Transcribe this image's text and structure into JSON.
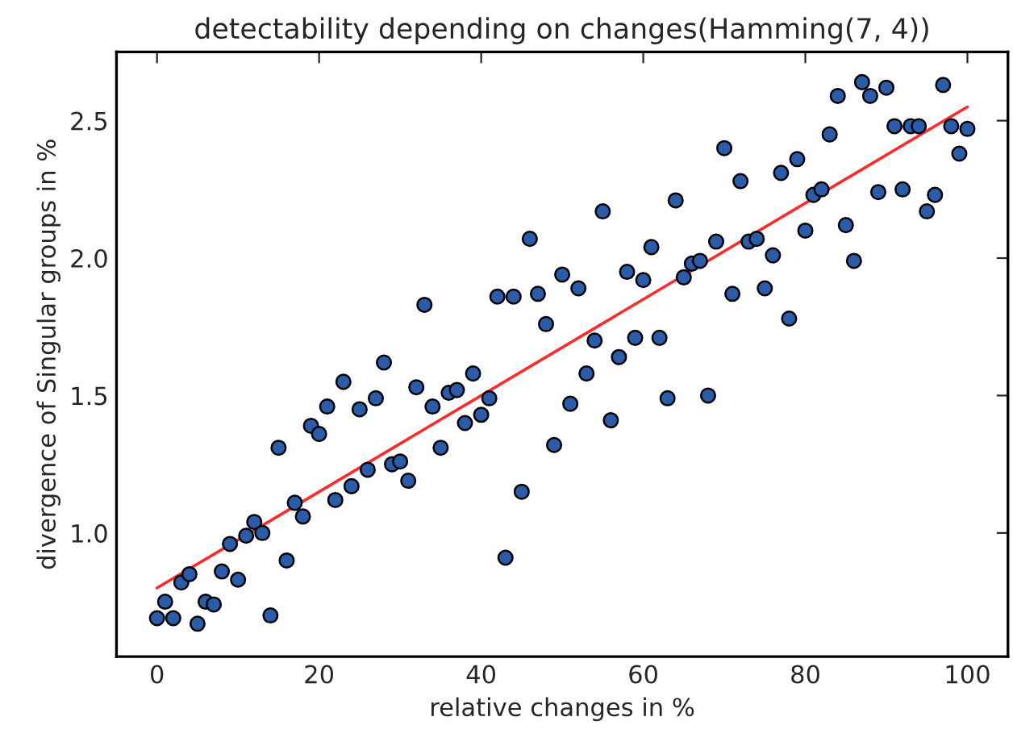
{
  "chart_data": {
    "type": "scatter",
    "title": "detectability depending on changes(Hamming(7, 4))",
    "xlabel": "relative changes in %",
    "ylabel": "divergence of Singular groups in %",
    "xlim": [
      -5,
      105
    ],
    "xticks": [
      0,
      20,
      40,
      60,
      80,
      100
    ],
    "ylim": [
      0.55,
      2.75
    ],
    "yticks": [
      {
        "value": 1.0,
        "label": "1.0"
      },
      {
        "value": 1.5,
        "label": "1.5"
      },
      {
        "value": 2.0,
        "label": "2.0"
      },
      {
        "value": 2.5,
        "label": "2.5"
      }
    ],
    "grid": false,
    "marker": "circle",
    "series": [
      {
        "color": "#2a5caa",
        "x": [
          0,
          1,
          2,
          3,
          4,
          5,
          6,
          7,
          8,
          9,
          10,
          11,
          12,
          13,
          14,
          15,
          16,
          17,
          18,
          19,
          20,
          21,
          22,
          23,
          24,
          25,
          26,
          27,
          28,
          29,
          30,
          31,
          32,
          33,
          34,
          35,
          36,
          37,
          38,
          39,
          40,
          41,
          42,
          43,
          44,
          45,
          46,
          47,
          48,
          49,
          50,
          51,
          52,
          53,
          54,
          55,
          56,
          57,
          58,
          59,
          60,
          61,
          62,
          63,
          64,
          65,
          66,
          67,
          68,
          69,
          70,
          71,
          72,
          73,
          74,
          75,
          76,
          77,
          78,
          79,
          80,
          81,
          82,
          83,
          84,
          85,
          86,
          87,
          88,
          89,
          90,
          91,
          92,
          93,
          94,
          95,
          96,
          97,
          98,
          99,
          100
        ],
        "values": [
          0.69,
          0.75,
          0.69,
          0.82,
          0.85,
          0.67,
          0.75,
          0.74,
          0.86,
          0.96,
          0.83,
          0.99,
          1.04,
          1.0,
          0.7,
          1.31,
          0.9,
          1.11,
          1.06,
          1.39,
          1.36,
          1.46,
          1.12,
          1.55,
          1.17,
          1.45,
          1.23,
          1.49,
          1.62,
          1.25,
          1.26,
          1.19,
          1.53,
          1.83,
          1.46,
          1.31,
          1.51,
          1.52,
          1.4,
          1.58,
          1.43,
          1.49,
          1.86,
          0.91,
          1.86,
          1.15,
          2.07,
          1.87,
          1.76,
          1.32,
          1.94,
          1.47,
          1.89,
          1.58,
          1.7,
          2.17,
          1.41,
          1.64,
          1.95,
          1.71,
          1.92,
          2.04,
          1.71,
          1.49,
          2.21,
          1.93,
          1.98,
          1.99,
          1.5,
          2.06,
          2.4,
          1.87,
          2.28,
          2.06,
          2.07,
          1.89,
          2.01,
          2.31,
          1.78,
          2.36,
          2.1,
          2.23,
          2.25,
          2.45,
          2.59,
          2.12,
          1.99,
          2.64,
          2.59,
          2.24,
          2.62,
          2.48,
          2.25,
          2.48,
          2.48,
          2.17,
          2.23,
          2.63,
          2.48,
          2.38,
          2.47
        ]
      },
      {
        "type": "line",
        "color": "#ff2a2a",
        "marker": "none",
        "line_style": "solid",
        "x": [
          0,
          100
        ],
        "values": [
          0.8,
          2.55
        ]
      }
    ]
  }
}
